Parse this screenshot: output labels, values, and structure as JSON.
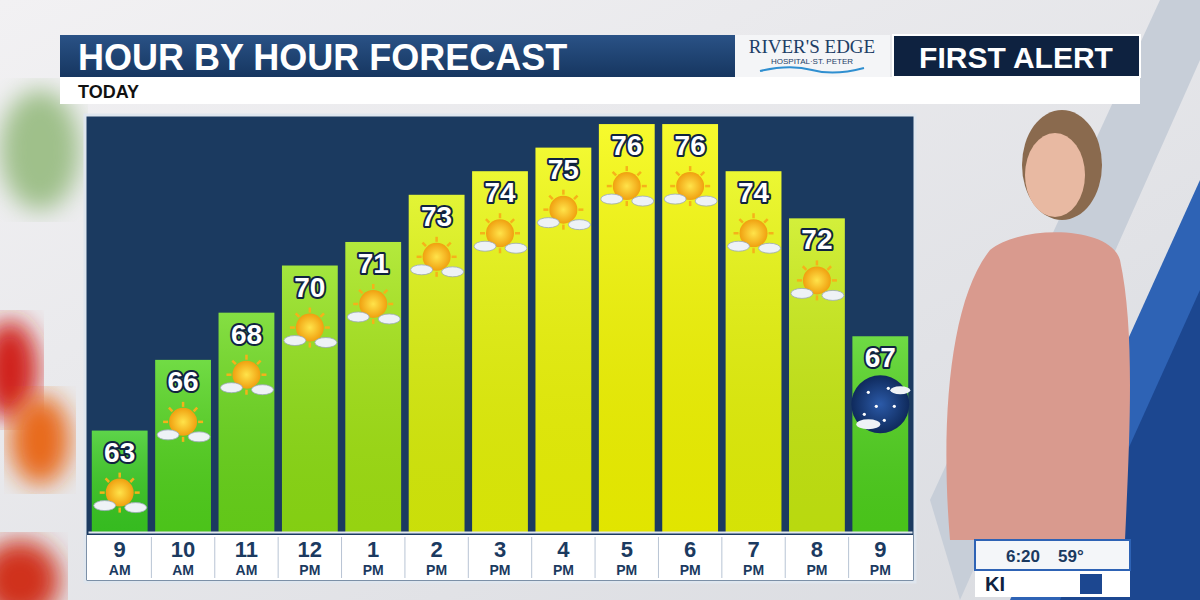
{
  "chart_data": {
    "type": "bar",
    "title": "HOUR BY HOUR FORECAST",
    "subtitle": "TODAY",
    "categories": [
      "9 AM",
      "10 AM",
      "11 AM",
      "12 PM",
      "1 PM",
      "2 PM",
      "3 PM",
      "4 PM",
      "5 PM",
      "6 PM",
      "7 PM",
      "8 PM",
      "9 PM"
    ],
    "values": [
      63,
      66,
      68,
      70,
      71,
      73,
      74,
      75,
      76,
      76,
      74,
      72,
      67
    ],
    "colors": [
      "#3acb22",
      "#52d41c",
      "#6ad81a",
      "#8fe014",
      "#a3e512",
      "#dcf20a",
      "#e8f607",
      "#eff805",
      "#f5f900",
      "#f5f900",
      "#e8f607",
      "#c9ec10",
      "#4fd31c"
    ],
    "ylim": [
      58.7,
      76.3
    ],
    "data_labels": true,
    "tick_labels": "x",
    "annotations": [
      "RIVER'S EDGE",
      "HOSPITAL·ST. PETER",
      "FIRST ALERT",
      "6:20",
      "59°",
      "KI"
    ]
  }
}
